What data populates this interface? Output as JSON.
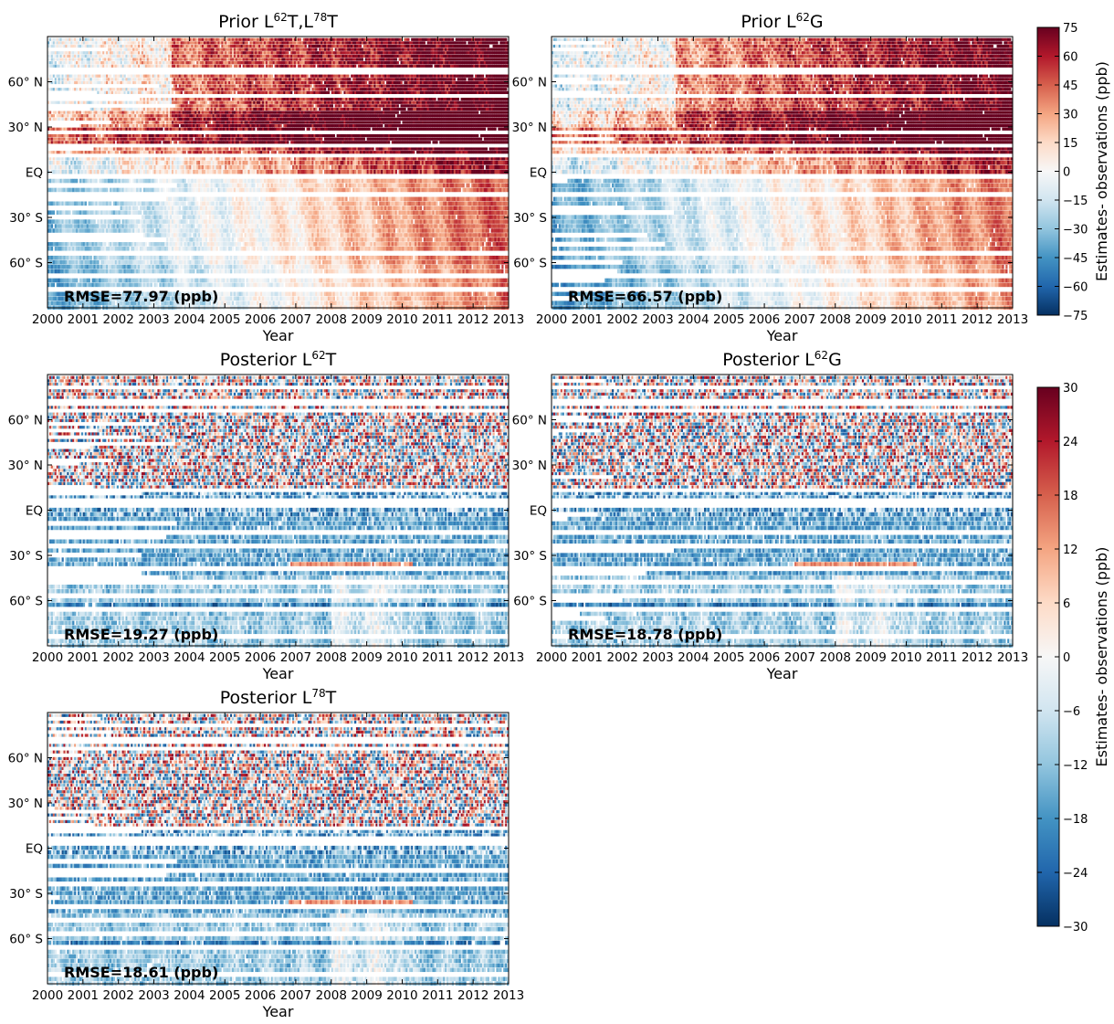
{
  "chart_data": [
    {
      "type": "heatmap",
      "title_parts": [
        "Prior L",
        "62",
        "T,L",
        "78",
        "T"
      ],
      "rmse_label": "RMSE=77.97 (ppb)",
      "xlabel": "Year",
      "x_ticks": [
        "2000",
        "2001",
        "2002",
        "2003",
        "2004",
        "2005",
        "2006",
        "2007",
        "2008",
        "2009",
        "2010",
        "2011",
        "2012",
        "2013"
      ],
      "xlim": [
        2000,
        2013
      ],
      "y_ticks": [
        "60° N",
        "30° N",
        "EQ",
        "30° S",
        "60° S"
      ],
      "y_tick_values": [
        60,
        30,
        0,
        -30,
        -60
      ],
      "ylim": [
        -90,
        90
      ],
      "colorbar": "prior",
      "pattern": "prior_a"
    },
    {
      "type": "heatmap",
      "title_parts": [
        "Prior L",
        "62",
        "G"
      ],
      "rmse_label": "RMSE=66.57 (ppb)",
      "xlabel": "Year",
      "x_ticks": [
        "2000",
        "2001",
        "2002",
        "2003",
        "2004",
        "2005",
        "2006",
        "2007",
        "2008",
        "2009",
        "2010",
        "2011",
        "2012",
        "2013"
      ],
      "xlim": [
        2000,
        2013
      ],
      "y_ticks": [
        "60° N",
        "30° N",
        "EQ",
        "30° S",
        "60° S"
      ],
      "y_tick_values": [
        60,
        30,
        0,
        -30,
        -60
      ],
      "ylim": [
        -90,
        90
      ],
      "colorbar": "prior",
      "pattern": "prior_b"
    },
    {
      "type": "heatmap",
      "title_parts": [
        "Posterior L",
        "62",
        "T"
      ],
      "rmse_label": "RMSE=19.27 (ppb)",
      "xlabel": "Year",
      "x_ticks": [
        "2000",
        "2001",
        "2002",
        "2003",
        "2004",
        "2005",
        "2006",
        "2007",
        "2008",
        "2009",
        "2010",
        "2011",
        "2012",
        "2013"
      ],
      "xlim": [
        2000,
        2013
      ],
      "y_ticks": [
        "60° N",
        "30° N",
        "EQ",
        "30° S",
        "60° S"
      ],
      "y_tick_values": [
        60,
        30,
        0,
        -30,
        -60
      ],
      "ylim": [
        -90,
        90
      ],
      "colorbar": "posterior",
      "pattern": "post_a"
    },
    {
      "type": "heatmap",
      "title_parts": [
        "Posterior L",
        "62",
        "G"
      ],
      "rmse_label": "RMSE=18.78 (ppb)",
      "xlabel": "Year",
      "x_ticks": [
        "2000",
        "2001",
        "2002",
        "2003",
        "2004",
        "2005",
        "2006",
        "2007",
        "2008",
        "2009",
        "2010",
        "2011",
        "2012",
        "2013"
      ],
      "xlim": [
        2000,
        2013
      ],
      "y_ticks": [
        "60° N",
        "30° N",
        "EQ",
        "30° S",
        "60° S"
      ],
      "y_tick_values": [
        60,
        30,
        0,
        -30,
        -60
      ],
      "ylim": [
        -90,
        90
      ],
      "colorbar": "posterior",
      "pattern": "post_b"
    },
    {
      "type": "heatmap",
      "title_parts": [
        "Posterior L",
        "78",
        "T"
      ],
      "rmse_label": "RMSE=18.61 (ppb)",
      "xlabel": "Year",
      "x_ticks": [
        "2000",
        "2001",
        "2002",
        "2003",
        "2004",
        "2005",
        "2006",
        "2007",
        "2008",
        "2009",
        "2010",
        "2011",
        "2012",
        "2013"
      ],
      "xlim": [
        2000,
        2013
      ],
      "y_ticks": [
        "60° N",
        "30° N",
        "EQ",
        "30° S",
        "60° S"
      ],
      "y_tick_values": [
        60,
        30,
        0,
        -30,
        -60
      ],
      "ylim": [
        -90,
        90
      ],
      "colorbar": "posterior",
      "pattern": "post_c"
    }
  ],
  "colorbars": {
    "prior": {
      "label": "Estimates- observations (ppb)",
      "range": [
        -75,
        75
      ],
      "ticks": [
        "75",
        "60",
        "45",
        "30",
        "15",
        "0",
        "−15",
        "−30",
        "−45",
        "−60",
        "−75"
      ]
    },
    "posterior": {
      "label": "Estimates- observations (ppb)",
      "range": [
        -30,
        30
      ],
      "ticks": [
        "30",
        "24",
        "18",
        "12",
        "6",
        "0",
        "−6",
        "−12",
        "−18",
        "−24",
        "−30"
      ]
    }
  },
  "colormap": {
    "name": "RdBu_r",
    "stops": [
      "#053061",
      "#2166ac",
      "#4393c3",
      "#92c5de",
      "#d1e5f0",
      "#f7f7f7",
      "#fddbc7",
      "#f4a582",
      "#d6604d",
      "#b2182b",
      "#67001f"
    ]
  }
}
